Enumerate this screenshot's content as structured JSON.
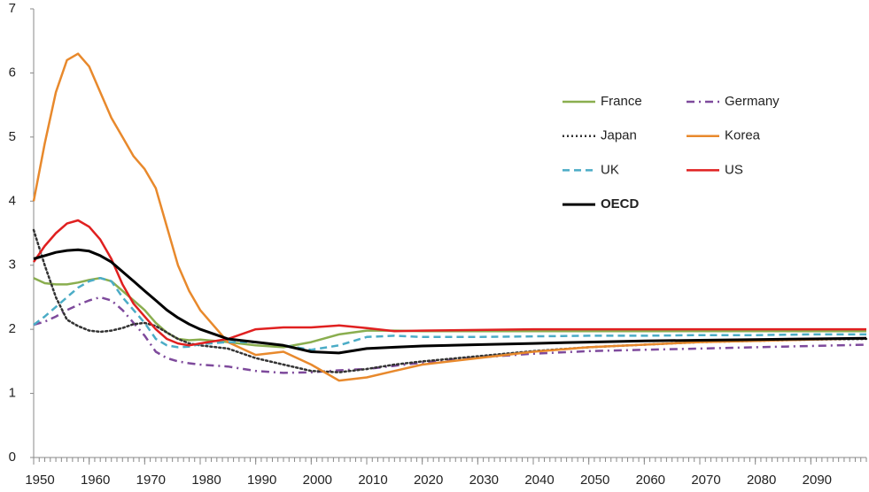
{
  "chart_data": {
    "type": "line",
    "x": [
      1950,
      1952,
      1954,
      1956,
      1958,
      1960,
      1962,
      1964,
      1966,
      1968,
      1970,
      1972,
      1974,
      1976,
      1978,
      1980,
      1985,
      1990,
      1995,
      2000,
      2005,
      2010,
      2015,
      2020,
      2030,
      2040,
      2050,
      2060,
      2070,
      2080,
      2090,
      2100
    ],
    "xlim": [
      1950,
      2100
    ],
    "xticks": [
      1950,
      1960,
      1970,
      1980,
      1990,
      2000,
      2010,
      2020,
      2030,
      2040,
      2050,
      2060,
      2070,
      2080,
      2090
    ],
    "ylim": [
      0,
      7
    ],
    "yticks": [
      0,
      1,
      2,
      3,
      4,
      5,
      6,
      7
    ],
    "grid": false,
    "legend": "upper-right",
    "series": [
      {
        "name": "France",
        "color": "#8aae4f",
        "dash": "solid",
        "values": [
          2.8,
          2.72,
          2.7,
          2.7,
          2.73,
          2.77,
          2.8,
          2.75,
          2.6,
          2.45,
          2.3,
          2.1,
          1.95,
          1.85,
          1.83,
          1.84,
          1.8,
          1.75,
          1.72,
          1.8,
          1.92,
          1.98,
          1.98,
          1.97,
          1.97,
          1.97,
          1.97,
          1.97,
          1.97,
          1.97,
          1.97,
          1.97
        ]
      },
      {
        "name": "Germany",
        "color": "#7e4a9c",
        "dash": "dashdot",
        "values": [
          2.07,
          2.12,
          2.2,
          2.3,
          2.38,
          2.45,
          2.5,
          2.45,
          2.3,
          2.1,
          1.9,
          1.65,
          1.55,
          1.5,
          1.47,
          1.45,
          1.42,
          1.35,
          1.32,
          1.33,
          1.36,
          1.38,
          1.43,
          1.48,
          1.56,
          1.62,
          1.66,
          1.68,
          1.7,
          1.72,
          1.74,
          1.76
        ]
      },
      {
        "name": "Japan",
        "color": "#333333",
        "dash": "dotted",
        "values": [
          3.55,
          3.0,
          2.5,
          2.15,
          2.05,
          1.98,
          1.96,
          1.98,
          2.02,
          2.08,
          2.1,
          2.05,
          1.95,
          1.85,
          1.78,
          1.75,
          1.7,
          1.55,
          1.45,
          1.35,
          1.33,
          1.38,
          1.45,
          1.5,
          1.58,
          1.66,
          1.72,
          1.76,
          1.8,
          1.82,
          1.84,
          1.85
        ]
      },
      {
        "name": "Korea",
        "color": "#e8892c",
        "dash": "solid",
        "values": [
          4.0,
          4.9,
          5.7,
          6.2,
          6.3,
          6.1,
          5.7,
          5.3,
          5.0,
          4.7,
          4.5,
          4.2,
          3.6,
          3.0,
          2.6,
          2.3,
          1.8,
          1.6,
          1.65,
          1.45,
          1.2,
          1.25,
          1.35,
          1.45,
          1.55,
          1.65,
          1.72,
          1.76,
          1.8,
          1.82,
          1.84,
          1.86
        ]
      },
      {
        "name": "UK",
        "color": "#4bacc6",
        "dash": "dashed",
        "values": [
          2.07,
          2.2,
          2.35,
          2.5,
          2.65,
          2.75,
          2.8,
          2.75,
          2.5,
          2.3,
          2.1,
          1.85,
          1.75,
          1.72,
          1.73,
          1.77,
          1.8,
          1.8,
          1.75,
          1.68,
          1.75,
          1.88,
          1.9,
          1.88,
          1.88,
          1.89,
          1.9,
          1.9,
          1.91,
          1.91,
          1.92,
          1.92
        ]
      },
      {
        "name": "US",
        "color": "#e02020",
        "dash": "solid",
        "values": [
          3.05,
          3.3,
          3.5,
          3.65,
          3.7,
          3.6,
          3.4,
          3.1,
          2.7,
          2.4,
          2.2,
          2.0,
          1.85,
          1.78,
          1.75,
          1.78,
          1.85,
          2.0,
          2.03,
          2.03,
          2.06,
          2.02,
          1.97,
          1.98,
          1.99,
          2.0,
          2.0,
          2.0,
          2.0,
          2.0,
          2.0,
          2.0
        ]
      },
      {
        "name": "OECD",
        "color": "#000000",
        "dash": "solid",
        "bold": true,
        "values": [
          3.1,
          3.15,
          3.2,
          3.23,
          3.24,
          3.22,
          3.15,
          3.05,
          2.9,
          2.75,
          2.6,
          2.45,
          2.3,
          2.18,
          2.08,
          2.0,
          1.85,
          1.8,
          1.75,
          1.65,
          1.63,
          1.7,
          1.72,
          1.74,
          1.76,
          1.78,
          1.8,
          1.82,
          1.83,
          1.84,
          1.85,
          1.86
        ]
      }
    ]
  }
}
